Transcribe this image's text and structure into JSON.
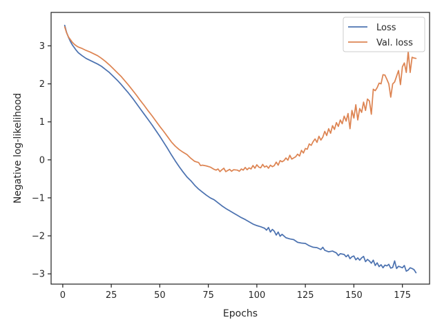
{
  "chart_data": {
    "type": "line",
    "title": "",
    "xlabel": "Epochs",
    "ylabel": "Negative log-likelihood",
    "xlim": [
      -6,
      189
    ],
    "ylim": [
      -3.27,
      3.88
    ],
    "xticks": [
      0,
      25,
      50,
      75,
      100,
      125,
      150,
      175
    ],
    "yticks": [
      -3,
      -2,
      -1,
      0,
      1,
      2,
      3
    ],
    "grid": false,
    "legend": {
      "position": "top-right"
    },
    "series": [
      {
        "name": "Loss",
        "color": "#4c72b0",
        "points": [
          [
            1,
            3.54
          ],
          [
            2,
            3.35
          ],
          [
            3,
            3.22
          ],
          [
            4,
            3.11
          ],
          [
            5,
            3.02
          ],
          [
            6,
            2.95
          ],
          [
            7,
            2.88
          ],
          [
            8,
            2.82
          ],
          [
            10,
            2.74
          ],
          [
            12,
            2.67
          ],
          [
            14,
            2.62
          ],
          [
            16,
            2.57
          ],
          [
            18,
            2.52
          ],
          [
            20,
            2.46
          ],
          [
            22,
            2.38
          ],
          [
            24,
            2.3
          ],
          [
            26,
            2.2
          ],
          [
            28,
            2.1
          ],
          [
            30,
            1.99
          ],
          [
            32,
            1.87
          ],
          [
            34,
            1.75
          ],
          [
            36,
            1.62
          ],
          [
            38,
            1.48
          ],
          [
            40,
            1.34
          ],
          [
            42,
            1.2
          ],
          [
            44,
            1.06
          ],
          [
            46,
            0.92
          ],
          [
            48,
            0.77
          ],
          [
            50,
            0.62
          ],
          [
            52,
            0.46
          ],
          [
            54,
            0.3
          ],
          [
            56,
            0.13
          ],
          [
            58,
            -0.03
          ],
          [
            60,
            -0.18
          ],
          [
            62,
            -0.32
          ],
          [
            64,
            -0.45
          ],
          [
            66,
            -0.55
          ],
          [
            68,
            -0.67
          ],
          [
            70,
            -0.77
          ],
          [
            72,
            -0.85
          ],
          [
            74,
            -0.93
          ],
          [
            76,
            -1.0
          ],
          [
            78,
            -1.05
          ],
          [
            80,
            -1.13
          ],
          [
            82,
            -1.21
          ],
          [
            84,
            -1.28
          ],
          [
            86,
            -1.34
          ],
          [
            88,
            -1.4
          ],
          [
            90,
            -1.46
          ],
          [
            92,
            -1.52
          ],
          [
            94,
            -1.57
          ],
          [
            96,
            -1.63
          ],
          [
            98,
            -1.69
          ],
          [
            100,
            -1.73
          ],
          [
            102,
            -1.76
          ],
          [
            104,
            -1.8
          ],
          [
            105,
            -1.85
          ],
          [
            106,
            -1.78
          ],
          [
            107,
            -1.9
          ],
          [
            108,
            -1.83
          ],
          [
            109,
            -1.88
          ],
          [
            110,
            -1.98
          ],
          [
            111,
            -1.9
          ],
          [
            112,
            -2.01
          ],
          [
            113,
            -1.96
          ],
          [
            115,
            -2.05
          ],
          [
            117,
            -2.08
          ],
          [
            119,
            -2.1
          ],
          [
            121,
            -2.17
          ],
          [
            123,
            -2.19
          ],
          [
            125,
            -2.2
          ],
          [
            127,
            -2.26
          ],
          [
            129,
            -2.3
          ],
          [
            131,
            -2.31
          ],
          [
            133,
            -2.36
          ],
          [
            134,
            -2.3
          ],
          [
            135,
            -2.38
          ],
          [
            137,
            -2.42
          ],
          [
            139,
            -2.4
          ],
          [
            141,
            -2.45
          ],
          [
            142,
            -2.52
          ],
          [
            143,
            -2.47
          ],
          [
            145,
            -2.49
          ],
          [
            146,
            -2.55
          ],
          [
            147,
            -2.5
          ],
          [
            148,
            -2.6
          ],
          [
            149,
            -2.55
          ],
          [
            150,
            -2.53
          ],
          [
            151,
            -2.63
          ],
          [
            152,
            -2.58
          ],
          [
            153,
            -2.64
          ],
          [
            154,
            -2.58
          ],
          [
            155,
            -2.54
          ],
          [
            156,
            -2.68
          ],
          [
            157,
            -2.62
          ],
          [
            158,
            -2.66
          ],
          [
            159,
            -2.72
          ],
          [
            160,
            -2.64
          ],
          [
            161,
            -2.78
          ],
          [
            162,
            -2.71
          ],
          [
            163,
            -2.81
          ],
          [
            164,
            -2.76
          ],
          [
            165,
            -2.84
          ],
          [
            166,
            -2.77
          ],
          [
            167,
            -2.79
          ],
          [
            168,
            -2.75
          ],
          [
            169,
            -2.85
          ],
          [
            170,
            -2.83
          ],
          [
            171,
            -2.66
          ],
          [
            172,
            -2.86
          ],
          [
            173,
            -2.8
          ],
          [
            174,
            -2.82
          ],
          [
            175,
            -2.84
          ],
          [
            176,
            -2.78
          ],
          [
            177,
            -2.93
          ],
          [
            178,
            -2.9
          ],
          [
            179,
            -2.84
          ],
          [
            180,
            -2.86
          ],
          [
            181,
            -2.89
          ],
          [
            182,
            -2.97
          ]
        ]
      },
      {
        "name": "Val. loss",
        "color": "#dd8452",
        "points": [
          [
            1,
            3.5
          ],
          [
            2,
            3.34
          ],
          [
            3,
            3.23
          ],
          [
            4,
            3.16
          ],
          [
            5,
            3.09
          ],
          [
            6,
            3.04
          ],
          [
            7,
            3.0
          ],
          [
            8,
            2.97
          ],
          [
            10,
            2.93
          ],
          [
            12,
            2.88
          ],
          [
            14,
            2.84
          ],
          [
            16,
            2.79
          ],
          [
            18,
            2.74
          ],
          [
            20,
            2.67
          ],
          [
            22,
            2.59
          ],
          [
            24,
            2.5
          ],
          [
            26,
            2.4
          ],
          [
            28,
            2.3
          ],
          [
            30,
            2.2
          ],
          [
            32,
            2.08
          ],
          [
            34,
            1.96
          ],
          [
            36,
            1.83
          ],
          [
            38,
            1.7
          ],
          [
            40,
            1.56
          ],
          [
            42,
            1.43
          ],
          [
            44,
            1.29
          ],
          [
            46,
            1.16
          ],
          [
            48,
            1.02
          ],
          [
            50,
            0.88
          ],
          [
            52,
            0.75
          ],
          [
            54,
            0.61
          ],
          [
            56,
            0.47
          ],
          [
            58,
            0.36
          ],
          [
            60,
            0.27
          ],
          [
            62,
            0.2
          ],
          [
            64,
            0.14
          ],
          [
            66,
            0.04
          ],
          [
            68,
            -0.04
          ],
          [
            70,
            -0.07
          ],
          [
            71,
            -0.15
          ],
          [
            72,
            -0.14
          ],
          [
            74,
            -0.16
          ],
          [
            76,
            -0.19
          ],
          [
            78,
            -0.25
          ],
          [
            79,
            -0.27
          ],
          [
            80,
            -0.24
          ],
          [
            81,
            -0.31
          ],
          [
            82,
            -0.26
          ],
          [
            83,
            -0.22
          ],
          [
            84,
            -0.31
          ],
          [
            85,
            -0.28
          ],
          [
            86,
            -0.25
          ],
          [
            87,
            -0.3
          ],
          [
            88,
            -0.26
          ],
          [
            90,
            -0.27
          ],
          [
            91,
            -0.3
          ],
          [
            92,
            -0.24
          ],
          [
            93,
            -0.27
          ],
          [
            94,
            -0.2
          ],
          [
            95,
            -0.26
          ],
          [
            96,
            -0.21
          ],
          [
            97,
            -0.24
          ],
          [
            98,
            -0.15
          ],
          [
            99,
            -0.22
          ],
          [
            100,
            -0.13
          ],
          [
            101,
            -0.19
          ],
          [
            102,
            -0.21
          ],
          [
            103,
            -0.12
          ],
          [
            104,
            -0.19
          ],
          [
            105,
            -0.16
          ],
          [
            106,
            -0.22
          ],
          [
            107,
            -0.14
          ],
          [
            108,
            -0.18
          ],
          [
            109,
            -0.15
          ],
          [
            110,
            -0.06
          ],
          [
            111,
            -0.14
          ],
          [
            112,
            -0.02
          ],
          [
            113,
            -0.05
          ],
          [
            114,
            -0.02
          ],
          [
            115,
            0.05
          ],
          [
            116,
            -0.01
          ],
          [
            117,
            0.12
          ],
          [
            118,
            0.02
          ],
          [
            119,
            0.05
          ],
          [
            120,
            0.08
          ],
          [
            121,
            0.15
          ],
          [
            122,
            0.1
          ],
          [
            123,
            0.25
          ],
          [
            124,
            0.18
          ],
          [
            125,
            0.3
          ],
          [
            126,
            0.28
          ],
          [
            127,
            0.42
          ],
          [
            128,
            0.38
          ],
          [
            129,
            0.48
          ],
          [
            130,
            0.55
          ],
          [
            131,
            0.46
          ],
          [
            132,
            0.62
          ],
          [
            133,
            0.52
          ],
          [
            134,
            0.6
          ],
          [
            135,
            0.75
          ],
          [
            136,
            0.64
          ],
          [
            137,
            0.82
          ],
          [
            138,
            0.7
          ],
          [
            139,
            0.9
          ],
          [
            140,
            0.8
          ],
          [
            141,
            0.98
          ],
          [
            142,
            0.88
          ],
          [
            143,
            1.05
          ],
          [
            144,
            0.95
          ],
          [
            145,
            1.15
          ],
          [
            146,
            1.02
          ],
          [
            147,
            1.22
          ],
          [
            148,
            0.82
          ],
          [
            149,
            1.3
          ],
          [
            150,
            1.1
          ],
          [
            151,
            1.45
          ],
          [
            152,
            1.05
          ],
          [
            153,
            1.35
          ],
          [
            154,
            1.25
          ],
          [
            155,
            1.52
          ],
          [
            156,
            1.3
          ],
          [
            157,
            1.6
          ],
          [
            158,
            1.55
          ],
          [
            159,
            1.2
          ],
          [
            160,
            1.86
          ],
          [
            161,
            1.82
          ],
          [
            162,
            1.9
          ],
          [
            163,
            2.02
          ],
          [
            164,
            2.0
          ],
          [
            165,
            2.24
          ],
          [
            166,
            2.23
          ],
          [
            167,
            2.12
          ],
          [
            168,
            2.0
          ],
          [
            169,
            1.65
          ],
          [
            170,
            2.0
          ],
          [
            171,
            2.05
          ],
          [
            172,
            2.2
          ],
          [
            173,
            2.35
          ],
          [
            174,
            1.98
          ],
          [
            175,
            2.45
          ],
          [
            176,
            2.55
          ],
          [
            177,
            2.3
          ],
          [
            178,
            2.85
          ],
          [
            179,
            2.3
          ],
          [
            180,
            2.7
          ],
          [
            181,
            2.68
          ],
          [
            182,
            2.67
          ]
        ]
      }
    ]
  }
}
